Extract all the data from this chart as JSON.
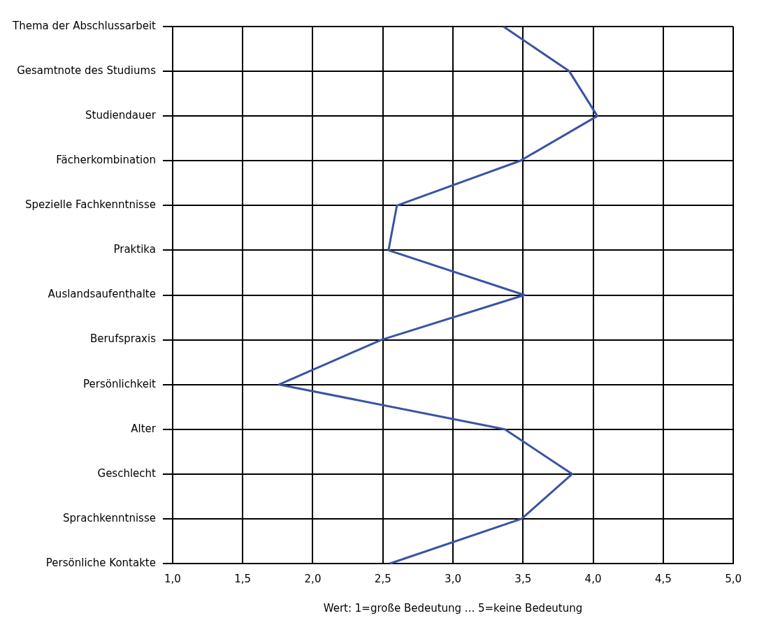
{
  "chart_data": {
    "type": "line",
    "orientation": "horizontal",
    "xlabel": "Wert: 1=große Bedeutung ... 5=keine Bedeutung",
    "categories": [
      "Thema der Abschlussarbeit",
      "Gesamtnote des Studiums",
      "Studiendauer",
      "Fächerkombination",
      "Spezielle Fachkenntnisse",
      "Praktika",
      "Auslandsaufenthalte",
      "Berufspraxis",
      "Persönlichkeit",
      "Alter",
      "Geschlecht",
      "Sprachkenntnisse",
      "Persönliche Kontakte"
    ],
    "values": [
      3.36,
      3.83,
      4.03,
      3.48,
      2.6,
      2.54,
      3.51,
      2.49,
      1.76,
      3.37,
      3.85,
      3.49,
      2.55
    ],
    "color": "#3a53a4",
    "xlim": [
      1,
      5
    ],
    "xticks": [
      {
        "value": 1,
        "label": "1,0"
      },
      {
        "value": 1.5,
        "label": "1,5"
      },
      {
        "value": 2,
        "label": "2,0"
      },
      {
        "value": 2.5,
        "label": "2,5"
      },
      {
        "value": 3,
        "label": "3,0"
      },
      {
        "value": 3.5,
        "label": "3,5"
      },
      {
        "value": 4,
        "label": "4,0"
      },
      {
        "value": 4.5,
        "label": "4,5"
      },
      {
        "value": 5,
        "label": "5,0"
      }
    ],
    "grid": true,
    "marker": "none",
    "line_style": "solid"
  }
}
